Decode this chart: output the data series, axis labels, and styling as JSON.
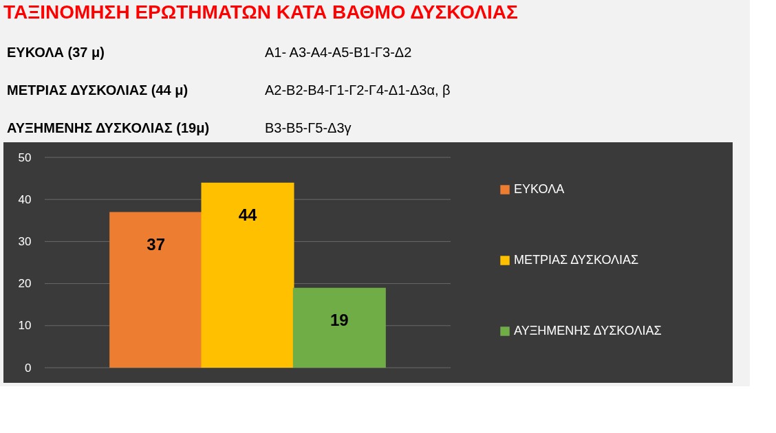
{
  "chart_data": {
    "type": "bar",
    "title": "ΤΑΞΙΝΟΜΗΣΗ ΕΡΩΤΗΜΑΤΩΝ ΚΑΤΑ ΒΑΘΜΟ ΔΥΣΚΟΛΙΑΣ",
    "annotations": [
      "ΕΥΚΟΛΑ (37 μ)",
      "Α1- Α3-Α4-Α5-Β1-Γ3-Δ2",
      "ΜΕΤΡΙΑΣ ΔΥΣΚΟΛΙΑΣ (44 μ)",
      "Α2-Β2-Β4-Γ1-Γ2-Γ4-Δ1-Δ3α, β",
      "ΑΥΞΗΜΕΝΗΣ ΔΥΣΚΟΛΙΑΣ (19μ)",
      "Β3-Β5-Γ5-Δ3γ"
    ],
    "categories": [
      null
    ],
    "series": [
      {
        "name": "ΕΥΚΟΛΑ",
        "color": "#ed7d31",
        "values": [
          37
        ]
      },
      {
        "name": "ΜΕΤΡΙΑΣ ΔΥΣΚΟΛΙΑΣ",
        "color": "#ffc000",
        "values": [
          44
        ]
      },
      {
        "name": "ΑΥΞΗΜΕΝΗΣ ΔΥΣΚΟΛΙΑΣ",
        "color": "#70ad47",
        "values": [
          19
        ]
      }
    ],
    "ylim": [
      0,
      50
    ],
    "yticks": [
      0,
      10,
      20,
      30,
      40,
      50
    ],
    "grid": "y",
    "data_labels": true,
    "legend": "right",
    "tick_labels": "y"
  }
}
